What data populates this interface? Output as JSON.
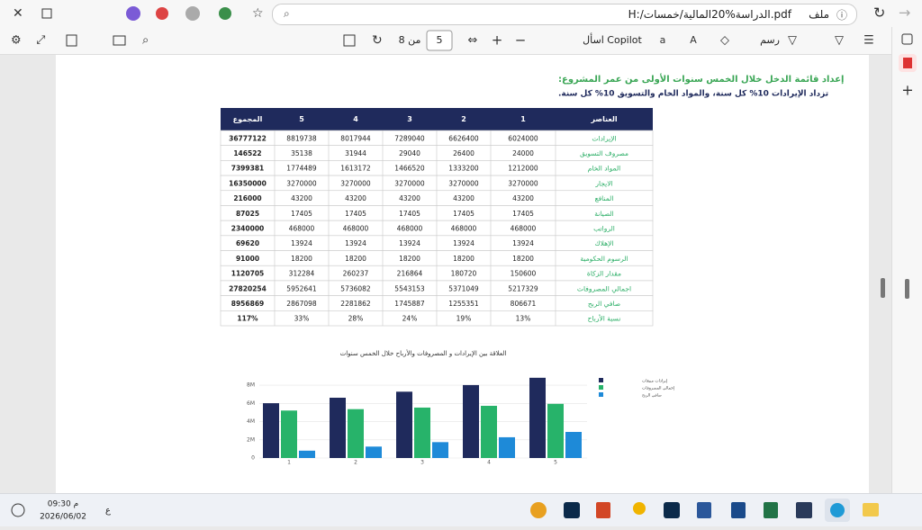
{
  "browser": {
    "file_label": "ملف",
    "address": "H:/الدراسة%20المالية/خمسات.pdf"
  },
  "pdf_toolbar": {
    "page": "5",
    "page_total": "من 8",
    "copilot": "اسأل Copilot",
    "draw": "رسم"
  },
  "document": {
    "heading": "إعداد قائمة الدخل خلال الخمس سنوات الأولى من عمر المشروع:",
    "subheading": "تزداد الإيرادات 10% كل سنة، والمواد الخام والتسويق 10% كل سنة.",
    "table": {
      "header": [
        "العناصر",
        "1",
        "2",
        "3",
        "4",
        "5",
        "المجموع"
      ],
      "rows": [
        [
          "الإيرادات",
          "6024000",
          "6626400",
          "7289040",
          "8017944",
          "8819738",
          "36777122"
        ],
        [
          "مصروف التسويق",
          "24000",
          "26400",
          "29040",
          "31944",
          "35138",
          "146522"
        ],
        [
          "المواد الخام",
          "1212000",
          "1333200",
          "1466520",
          "1613172",
          "1774489",
          "7399381"
        ],
        [
          "الايجار",
          "3270000",
          "3270000",
          "3270000",
          "3270000",
          "3270000",
          "16350000"
        ],
        [
          "المنافع",
          "43200",
          "43200",
          "43200",
          "43200",
          "43200",
          "216000"
        ],
        [
          "الصيانة",
          "17405",
          "17405",
          "17405",
          "17405",
          "17405",
          "87025"
        ],
        [
          "الرواتب",
          "468000",
          "468000",
          "468000",
          "468000",
          "468000",
          "2340000"
        ],
        [
          "الإهلاك",
          "13924",
          "13924",
          "13924",
          "13924",
          "13924",
          "69620"
        ],
        [
          "الرسوم الحكومية",
          "18200",
          "18200",
          "18200",
          "18200",
          "18200",
          "91000"
        ],
        [
          "مقدار الزكاة",
          "150600",
          "180720",
          "216864",
          "260237",
          "312284",
          "1120705"
        ],
        [
          "اجمالي المصروفات",
          "5217329",
          "5371049",
          "5543153",
          "5736082",
          "5952641",
          "27820254"
        ],
        [
          "صافي الربح",
          "806671",
          "1255351",
          "1745887",
          "2281862",
          "2867098",
          "8956869"
        ],
        [
          "نسبة الأرباح",
          "13%",
          "19%",
          "24%",
          "28%",
          "33%",
          "117%"
        ]
      ]
    }
  },
  "chart_data": {
    "type": "bar",
    "title": "العلاقة بين الإيرادات و المصروفات والأرباح خلال الخمس سنوات",
    "categories": [
      "1",
      "2",
      "3",
      "4",
      "5"
    ],
    "series": [
      {
        "name": "إيرادات مبيعات",
        "color": "#1f2a5c",
        "values": [
          6024000,
          6626400,
          7289040,
          8017944,
          8819738
        ]
      },
      {
        "name": "إجمالي المصروفات",
        "color": "#27b36a",
        "values": [
          5217329,
          5371049,
          5543153,
          5736082,
          5952641
        ]
      },
      {
        "name": "صافي الربح",
        "color": "#1e8ad8",
        "values": [
          806671,
          1255351,
          1745887,
          2281862,
          2867098
        ]
      }
    ],
    "ylim": [
      0,
      9000000
    ],
    "yticks": [
      0,
      {
        "value": 2000000,
        "label": "2M"
      },
      {
        "value": 4000000,
        "label": "4M"
      },
      {
        "value": 6000000,
        "label": "6M"
      },
      {
        "value": 8000000,
        "label": "8M"
      }
    ],
    "grid": true,
    "legend": "right"
  },
  "taskbar": {
    "time": "09:30 م",
    "date": "2026/06/02",
    "language": "ع"
  }
}
